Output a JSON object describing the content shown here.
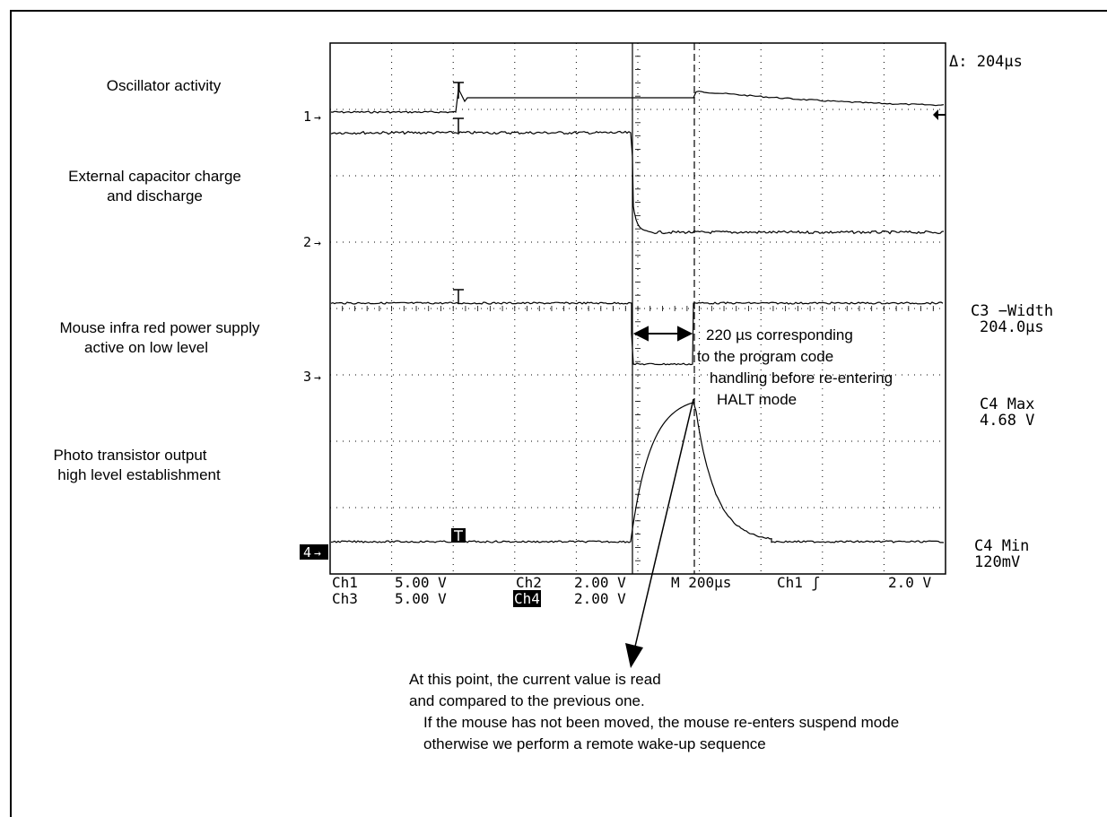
{
  "channel_labels": [
    {
      "id": "osc",
      "lines": [
        "Oscillator activity"
      ]
    },
    {
      "id": "cap",
      "lines": [
        "External capacitor charge",
        "and discharge"
      ]
    },
    {
      "id": "ir",
      "lines": [
        "Mouse infra red power supply",
        "active on low level"
      ]
    },
    {
      "id": "photo",
      "lines": [
        "Photo transistor output",
        "high level establishment"
      ]
    }
  ],
  "markers": [
    "1",
    "2",
    "3",
    "4"
  ],
  "readouts": {
    "delta": "Δ: 204µs",
    "c3_width_label": "C3 −Width",
    "c3_width_value": "204.0µs",
    "c4_max_label": "C4 Max",
    "c4_max_value": "4.68 V",
    "c4_min_label": "C4 Min",
    "c4_min_value": "120mV"
  },
  "scale_row1": {
    "ch1": "Ch1",
    "ch1_v": "5.00 V",
    "ch2": "Ch2",
    "ch2_v": "2.00 V",
    "timebase": "M 200µs",
    "trig": "Ch1 ʃ",
    "trig_v": "2.0 V"
  },
  "scale_row2": {
    "ch3": "Ch3",
    "ch3_v": "5.00 V",
    "ch4": "Ch4",
    "ch4_v": "2.00 V"
  },
  "pulse_annotation": [
    "220 µs  corresponding",
    "to the program code",
    "handling before re-entering",
    "HALT mode"
  ],
  "read_note": [
    "At this point, the current value is read",
    "and compared to the previous one.",
    "If the mouse has not been moved, the mouse re-enters suspend mode",
    "otherwise we perform a remote wake-up sequence"
  ]
}
